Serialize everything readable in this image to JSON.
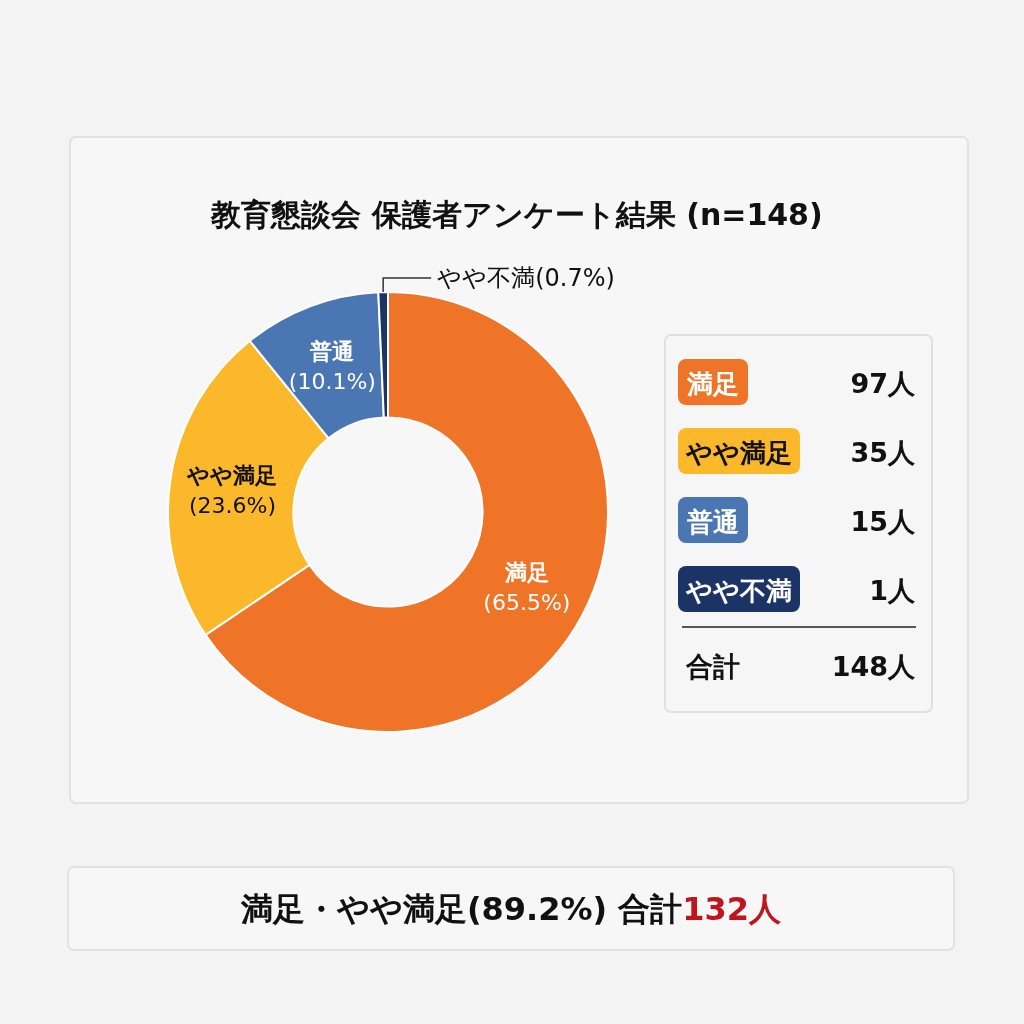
{
  "chart_data": {
    "type": "donut",
    "title": "教育懇談会 保護者アンケート結果 (n=148)",
    "categories": [
      "満足",
      "やや満足",
      "普通",
      "やや不満"
    ],
    "values": [
      65.5,
      23.6,
      10.1,
      0.7
    ],
    "colors": [
      "#ef7427",
      "#fbb82b",
      "#4a77b4",
      "#1b3465"
    ],
    "value_labels": [
      "(65.5%)",
      "(23.6%)",
      "(10.1%)",
      "(0.7%)"
    ],
    "annotations": [
      "97人",
      "35人",
      "15人",
      "1人",
      "合計",
      "148人",
      "満足・やや満足(89.2%) 合計",
      "132人"
    ]
  }
}
